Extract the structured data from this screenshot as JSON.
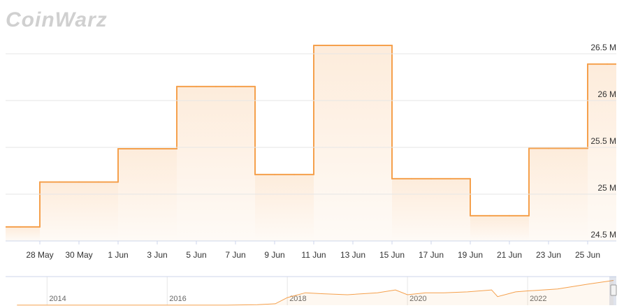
{
  "chart_data": {
    "type": "step-area",
    "watermark": "CoinWarz",
    "categories": [
      null,
      null,
      "28 May",
      null,
      "30 May",
      null,
      "1 Jun",
      null,
      "3 Jun",
      null,
      "5 Jun",
      null,
      "7 Jun",
      null,
      "9 Jun",
      null,
      "11 Jun",
      null,
      "13 Jun",
      null,
      "15 Jun",
      null,
      "17 Jun",
      null,
      "19 Jun",
      null,
      "21 Jun",
      null,
      "23 Jun",
      null,
      "25 Jun",
      null
    ],
    "values": [
      24650000,
      24650000,
      25130000,
      25130000,
      25130000,
      25130000,
      25485000,
      25485000,
      25485000,
      26150000,
      26150000,
      26150000,
      26150000,
      25210000,
      25210000,
      25210000,
      26590000,
      26590000,
      26590000,
      26590000,
      25165000,
      25165000,
      25165000,
      25165000,
      24770000,
      24770000,
      24770000,
      25490000,
      25490000,
      25490000,
      26390000,
      26390000
    ],
    "color": "#f5a04c",
    "ylim": [
      24500000,
      27015000
    ],
    "yticks": [
      {
        "value": 24500000,
        "label": "24.5 M"
      },
      {
        "value": 25000000,
        "label": "25 M"
      },
      {
        "value": 25500000,
        "label": "25.5 M"
      },
      {
        "value": 26000000,
        "label": "26 M"
      },
      {
        "value": 26500000,
        "label": "26.5 M"
      }
    ],
    "grid": true,
    "navigator": {
      "x": [
        2013.5,
        2014,
        2015,
        2016,
        2017,
        2017.5,
        2017.8,
        2018,
        2018.3,
        2018.6,
        2019,
        2019.5,
        2019.8,
        2020,
        2020.3,
        2020.6,
        2021,
        2021.4,
        2021.5,
        2021.8,
        2022,
        2022.5,
        2023,
        2023.43
      ],
      "values": [
        100000,
        100000,
        100000,
        100000,
        100000,
        500000,
        1500000,
        8000000,
        13000000,
        12000000,
        11000000,
        13000000,
        16000000,
        11000000,
        13000000,
        13000000,
        14000000,
        16000000,
        9000000,
        14000000,
        15000000,
        17000000,
        22000000,
        26000000
      ],
      "xlim": [
        2013.31,
        2023.43
      ],
      "xticks": [
        2014,
        2016,
        2018,
        2020,
        2022
      ],
      "ylim": [
        0,
        30000000
      ]
    }
  }
}
